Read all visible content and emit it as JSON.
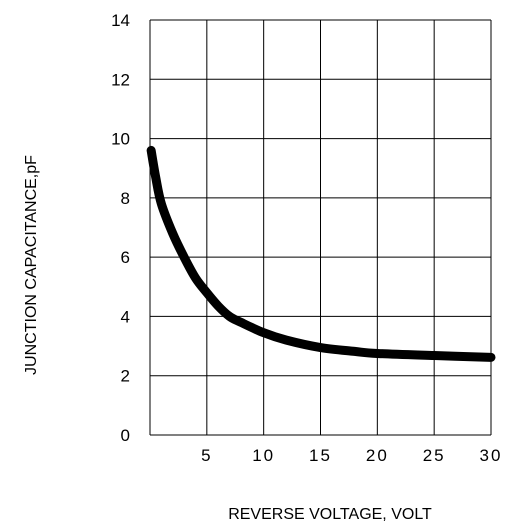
{
  "chart_data": {
    "type": "line",
    "xlabel": "REVERSE VOLTAGE, VOLT",
    "ylabel": "JUNCTION CAPACITANCE,pF",
    "xlim": [
      0,
      30
    ],
    "ylim": [
      0,
      14
    ],
    "x_ticks": [
      {
        "value": 0,
        "label": ""
      },
      {
        "value": 5,
        "label": "5"
      },
      {
        "value": 10,
        "label": "10"
      },
      {
        "value": 15,
        "label": "15"
      },
      {
        "value": 20,
        "label": "20"
      },
      {
        "value": 25,
        "label": "25"
      },
      {
        "value": 30,
        "label": "30"
      }
    ],
    "y_ticks": [
      {
        "value": 0,
        "label": "0"
      },
      {
        "value": 2,
        "label": "2"
      },
      {
        "value": 4,
        "label": "4"
      },
      {
        "value": 6,
        "label": "6"
      },
      {
        "value": 8,
        "label": "8"
      },
      {
        "value": 10,
        "label": "10"
      },
      {
        "value": 12,
        "label": "12"
      },
      {
        "value": 14,
        "label": "14"
      }
    ],
    "grid": true,
    "series": [
      {
        "color": "#000000",
        "x": [
          0.1,
          0.5,
          1,
          2,
          3,
          4,
          5,
          6,
          7,
          8,
          10,
          12,
          15,
          18,
          20,
          25,
          30
        ],
        "y": [
          9.6,
          8.7,
          7.8,
          6.8,
          6.0,
          5.3,
          4.8,
          4.35,
          4.0,
          3.8,
          3.45,
          3.2,
          2.95,
          2.82,
          2.75,
          2.68,
          2.62
        ]
      }
    ]
  }
}
